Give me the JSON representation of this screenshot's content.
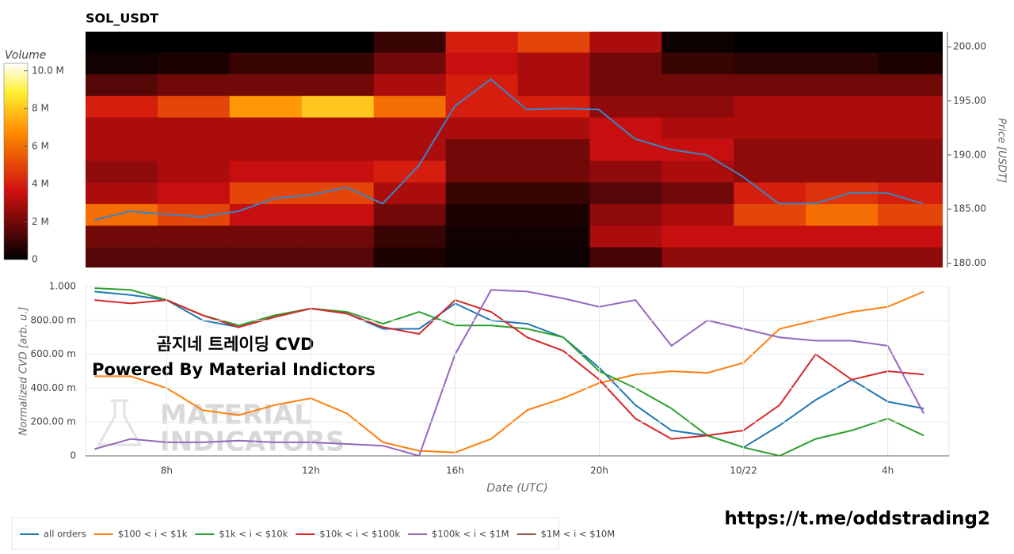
{
  "chart_data": [
    {
      "type": "heatmap",
      "title": "SOL_USDT",
      "ylabel": "Price [USDT]",
      "zlabel": "Volume",
      "xlim": [
        5.75,
        29.55
      ],
      "ylim": [
        179.6,
        201.4
      ],
      "yticks": [
        {
          "value": 180,
          "label": "180.00"
        },
        {
          "value": 185,
          "label": "185.00"
        },
        {
          "value": 190,
          "label": "190.00"
        },
        {
          "value": 195,
          "label": "195.00"
        },
        {
          "value": 200,
          "label": "200.00"
        }
      ],
      "zlim": [
        0,
        10400000
      ],
      "zticks": [
        {
          "value": 0,
          "label": "0"
        },
        {
          "value": 2000000,
          "label": "2 M"
        },
        {
          "value": 4000000,
          "label": "4 M"
        },
        {
          "value": 6000000,
          "label": "6 M"
        },
        {
          "value": 8000000,
          "label": "8 M"
        },
        {
          "value": 10000000,
          "label": "10.0 M"
        }
      ],
      "x_edges": [
        5.75,
        7.75,
        9.75,
        11.75,
        13.75,
        15.75,
        17.75,
        19.75,
        21.75,
        23.75,
        25.75,
        27.75,
        29.75
      ],
      "y_edges": [
        179.5,
        181.5,
        183.5,
        185.5,
        187.5,
        189.5,
        191.5,
        193.5,
        195.5,
        197.5,
        199.5,
        201.5
      ],
      "volume": [
        [
          1500000.0,
          1500000.0,
          1500000.0,
          1500000.0,
          500000.0,
          200000.0,
          200000.0,
          1200000.0,
          2500000.0,
          2500000.0,
          2500000.0,
          2500000.0
        ],
        [
          2000000.0,
          2000000.0,
          2000000.0,
          2000000.0,
          1000000.0,
          300000.0,
          300000.0,
          3000000.0,
          3500000.0,
          3500000.0,
          3500000.0,
          3500000.0
        ],
        [
          6000000.0,
          5000000.0,
          3500000.0,
          3500000.0,
          2000000.0,
          500000.0,
          500000.0,
          2500000.0,
          3000000.0,
          5000000.0,
          6000000.0,
          5000000.0
        ],
        [
          3000000.0,
          3500000.0,
          5000000.0,
          5000000.0,
          3000000.0,
          1000000.0,
          1000000.0,
          1500000.0,
          2000000.0,
          4000000.0,
          4500000.0,
          4000000.0
        ],
        [
          2500000.0,
          3000000.0,
          3500000.0,
          3500000.0,
          4000000.0,
          2000000.0,
          2000000.0,
          2500000.0,
          3000000.0,
          2500000.0,
          2500000.0,
          2500000.0
        ],
        [
          3000000.0,
          3000000.0,
          3000000.0,
          3000000.0,
          3000000.0,
          2000000.0,
          2000000.0,
          3500000.0,
          3500000.0,
          2500000.0,
          2500000.0,
          2500000.0
        ],
        [
          3000000.0,
          3000000.0,
          3000000.0,
          3000000.0,
          3000000.0,
          3000000.0,
          3000000.0,
          3500000.0,
          3000000.0,
          3000000.0,
          3000000.0,
          3000000.0
        ],
        [
          4000000.0,
          5000000.0,
          7000000.0,
          8000000.0,
          6000000.0,
          4000000.0,
          4000000.0,
          2500000.0,
          2500000.0,
          3000000.0,
          3000000.0,
          3000000.0
        ],
        [
          1500000.0,
          2000000.0,
          2000000.0,
          2000000.0,
          3000000.0,
          4000000.0,
          3000000.0,
          2000000.0,
          2000000.0,
          2000000.0,
          2000000.0,
          2000000.0
        ],
        [
          300000.0,
          500000.0,
          1000000.0,
          1000000.0,
          2000000.0,
          3500000.0,
          3000000.0,
          2000000.0,
          1000000.0,
          800000.0,
          800000.0,
          500000.0
        ],
        [
          0,
          0,
          0,
          0,
          1000000.0,
          4000000.0,
          5000000.0,
          3000000.0,
          200000.0,
          0,
          0,
          0
        ]
      ],
      "x": [
        6,
        7,
        8,
        9,
        10,
        11,
        12,
        13,
        14,
        15,
        16,
        17,
        18,
        19,
        20,
        21,
        22,
        23,
        24,
        25,
        26,
        27,
        28,
        29
      ],
      "price": {
        "color": "#3a85c4",
        "values": [
          184,
          184.8,
          184.5,
          184.3,
          184.8,
          186,
          186.3,
          187,
          185.5,
          189,
          194.5,
          197,
          194.2,
          194.3,
          194.2,
          191.5,
          190.5,
          190,
          188,
          185.5,
          185.5,
          186.5,
          186.5,
          185.5
        ]
      }
    },
    {
      "type": "line",
      "xlabel": "Date (UTC)",
      "ylabel": "Normalized CVD [arb. u.]",
      "grid": true,
      "legend": "bottom-left",
      "xlim": [
        5.75,
        29.7
      ],
      "ylim": [
        0,
        1
      ],
      "xticks": [
        {
          "value": 8,
          "label": "8h"
        },
        {
          "value": 12,
          "label": "12h"
        },
        {
          "value": 16,
          "label": "16h"
        },
        {
          "value": 20,
          "label": "20h"
        },
        {
          "value": 24,
          "label": "10/22"
        },
        {
          "value": 28,
          "label": "4h"
        }
      ],
      "yticks": [
        0,
        {
          "value": 0.2,
          "label": "200.00 m"
        },
        {
          "value": 0.4,
          "label": "400.00 m"
        },
        {
          "value": 0.6,
          "label": "600.00 m"
        },
        {
          "value": 0.8,
          "label": "800.00 m"
        },
        {
          "value": 1,
          "label": "1.000"
        }
      ],
      "x": [
        6,
        7,
        8,
        9,
        10,
        11,
        12,
        13,
        14,
        15,
        16,
        17,
        18,
        19,
        20,
        21,
        22,
        23,
        24,
        25,
        26,
        27,
        28,
        29
      ],
      "series": [
        {
          "name": "all orders",
          "color": "#1f77b4",
          "values": [
            0.97,
            0.95,
            0.92,
            0.8,
            0.76,
            0.82,
            0.87,
            0.84,
            0.75,
            0.75,
            0.9,
            0.8,
            0.78,
            0.7,
            0.52,
            0.3,
            0.15,
            0.12,
            0.05,
            0.18,
            0.33,
            0.45,
            0.32,
            0.28
          ]
        },
        {
          "name": "$100 < i < $1k",
          "color": "#ff7f0e",
          "values": [
            0.47,
            0.47,
            0.4,
            0.27,
            0.24,
            0.3,
            0.34,
            0.25,
            0.08,
            0.03,
            0.02,
            0.1,
            0.27,
            0.34,
            0.43,
            0.48,
            0.5,
            0.49,
            0.55,
            0.75,
            0.8,
            0.85,
            0.88,
            0.97
          ]
        },
        {
          "name": "$1k < i < $10k",
          "color": "#2ca02c",
          "values": [
            0.99,
            0.98,
            0.92,
            0.83,
            0.77,
            0.83,
            0.87,
            0.85,
            0.78,
            0.85,
            0.77,
            0.77,
            0.75,
            0.7,
            0.5,
            0.4,
            0.28,
            0.12,
            0.05,
            0,
            0.1,
            0.15,
            0.22,
            0.12
          ]
        },
        {
          "name": "$10k < i < $100k",
          "color": "#d62728",
          "values": [
            0.92,
            0.9,
            0.92,
            0.83,
            0.76,
            0.82,
            0.87,
            0.84,
            0.76,
            0.72,
            0.92,
            0.85,
            0.7,
            0.62,
            0.45,
            0.22,
            0.1,
            0.12,
            0.15,
            0.3,
            0.6,
            0.45,
            0.5,
            0.48
          ]
        },
        {
          "name": "$100k < i < $1M",
          "color": "#9467bd",
          "values": [
            0.04,
            0.1,
            0.08,
            0.08,
            0.09,
            0.08,
            0.08,
            0.07,
            0.06,
            0,
            0.6,
            0.98,
            0.97,
            0.93,
            0.88,
            0.92,
            0.65,
            0.8,
            0.75,
            0.7,
            0.68,
            0.68,
            0.65,
            0.25
          ]
        },
        {
          "name": "$1M < i < $10M",
          "color": "#8c564b",
          "values": [
            null,
            null,
            null,
            null,
            null,
            null,
            null,
            null,
            null,
            null,
            null,
            null,
            null,
            null,
            null,
            null,
            null,
            null,
            null,
            null,
            null,
            null,
            null,
            null
          ]
        }
      ],
      "annotations": [
        "곰지네 트레이딩 CVD",
        "Powered By Material Indictors"
      ],
      "watermark": [
        "MATERIAL",
        "INDICATORS"
      ]
    }
  ],
  "footer": "https://t.me/oddstrading2"
}
